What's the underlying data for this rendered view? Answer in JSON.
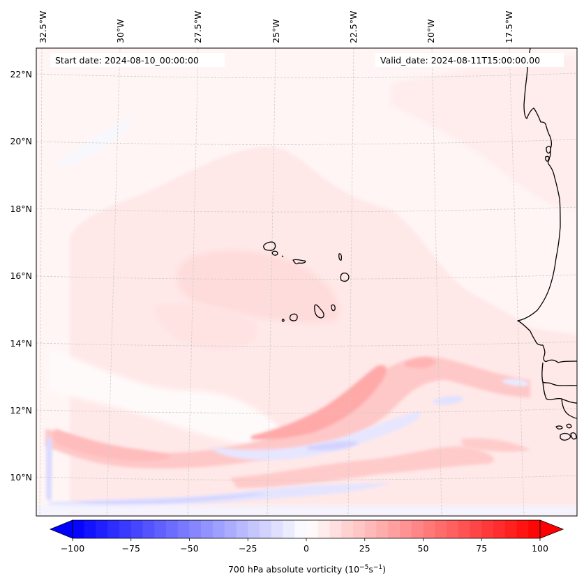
{
  "figure": {
    "annotations": {
      "start_date": "Start date: 2024-08-10_00:00:00",
      "valid_date": "Valid_date: 2024-08-11T15:00:00.00"
    },
    "colorbar": {
      "label_main": "700 hPa absolute vorticity (10",
      "label_exp1": "−5",
      "label_mid": "s",
      "label_exp2": "−1",
      "label_end": ")",
      "vmin": -100,
      "vmax": 100,
      "step": 5,
      "extend": "both",
      "colormap": "bwr",
      "ticks": [
        -100,
        -75,
        -50,
        -25,
        0,
        25,
        50,
        75,
        100
      ],
      "tick_labels": [
        "−100",
        "−75",
        "−50",
        "−25",
        "0",
        "25",
        "50",
        "75",
        "100"
      ]
    }
  },
  "chart_data": {
    "type": "heatmap",
    "title": "",
    "field": "700 hPa absolute vorticity",
    "units": "10^-5 s^-1",
    "projection": "Lambert conformal (slightly curved graticule)",
    "lon_range": [
      -33.0,
      -16.0
    ],
    "lat_range": [
      9.0,
      22.8
    ],
    "lon_ticks": [
      -32.5,
      -30,
      -27.5,
      -25,
      -22.5,
      -20,
      -17.5
    ],
    "lon_tick_labels": [
      "32.5°W",
      "30°W",
      "27.5°W",
      "25°W",
      "22.5°W",
      "20°W",
      "17.5°W"
    ],
    "lat_ticks": [
      10,
      12,
      14,
      16,
      18,
      20,
      22
    ],
    "lat_tick_labels": [
      "10°N",
      "12°N",
      "14°N",
      "16°N",
      "18°N",
      "20°N",
      "22°N"
    ],
    "gridlines": true,
    "colorbar": {
      "min": -100,
      "max": 100,
      "step": 5,
      "extend": "both",
      "ticks": [
        -100,
        -75,
        -50,
        -25,
        0,
        25,
        50,
        75,
        100
      ],
      "label": "700 hPa absolute vorticity (10^-5 s^-1)",
      "placement": "bottom"
    },
    "features": [
      {
        "name": "positive vorticity band",
        "description": "ENE-oriented band from ~33°W,11°N to ~20°W,13°N",
        "approx_max": 35
      },
      {
        "name": "negative vorticity band",
        "description": "zonal band along ~9.5°N",
        "approx_min": -25
      },
      {
        "name": "negative vorticity streak",
        "description": "ENE streak near 24°W–21°W, 11°N–12°N",
        "approx_min": -20
      },
      {
        "name": "background",
        "description": "weak positive vorticity over most of the domain",
        "approx_value": 5
      }
    ],
    "coastlines": [
      "West African coast (Mauritania, Senegal, Guinea-Bissau)",
      "Cape Verde Islands"
    ]
  }
}
